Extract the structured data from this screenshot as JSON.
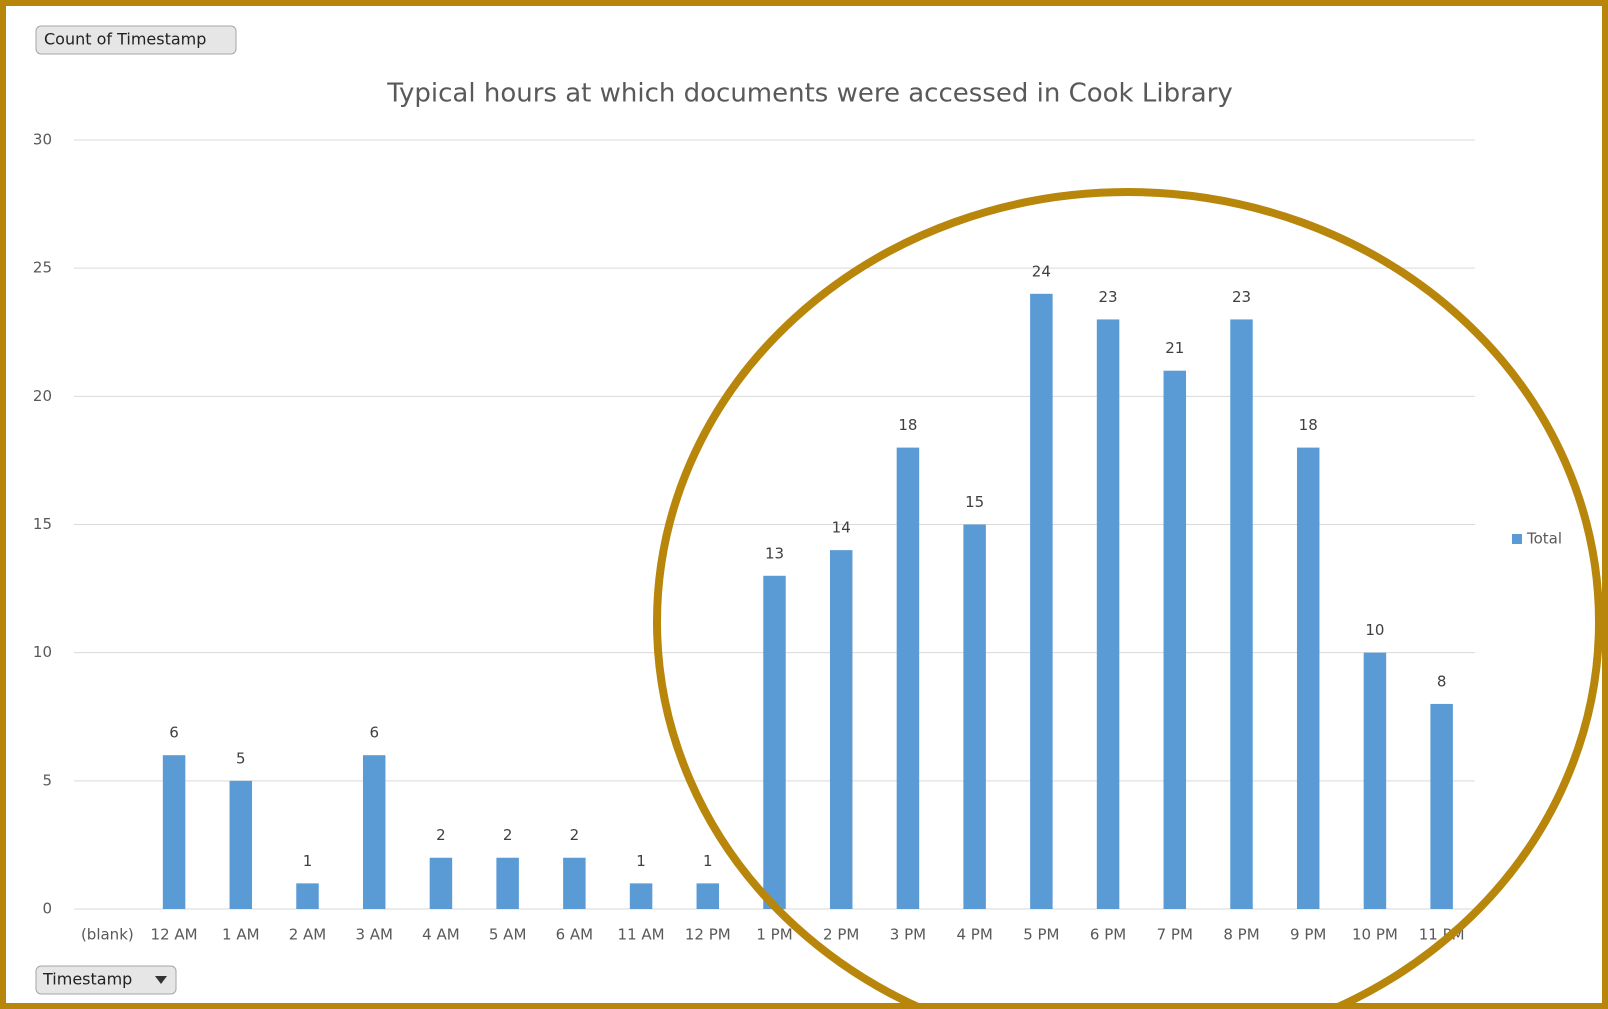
{
  "chart_data": {
    "type": "bar",
    "title": "Typical hours at which documents were accessed in Cook Library",
    "value_field": "Count of Timestamp",
    "axis_field": "Timestamp",
    "categories": [
      "(blank)",
      "12 AM",
      "1 AM",
      "2 AM",
      "3 AM",
      "4 AM",
      "5 AM",
      "6 AM",
      "11 AM",
      "12 PM",
      "1 PM",
      "2 PM",
      "3 PM",
      "4 PM",
      "5 PM",
      "6 PM",
      "7 PM",
      "8 PM",
      "9 PM",
      "10 PM",
      "11 PM"
    ],
    "series": [
      {
        "name": "Total",
        "color": "#5b9bd5",
        "values": [
          null,
          6,
          5,
          1,
          6,
          2,
          2,
          2,
          1,
          1,
          13,
          14,
          18,
          15,
          24,
          23,
          21,
          23,
          18,
          10,
          8
        ]
      }
    ],
    "ylim": [
      0,
      30
    ],
    "yticks": [
      0,
      5,
      10,
      15,
      20,
      25,
      30
    ],
    "grid": true,
    "legend": "right"
  }
}
